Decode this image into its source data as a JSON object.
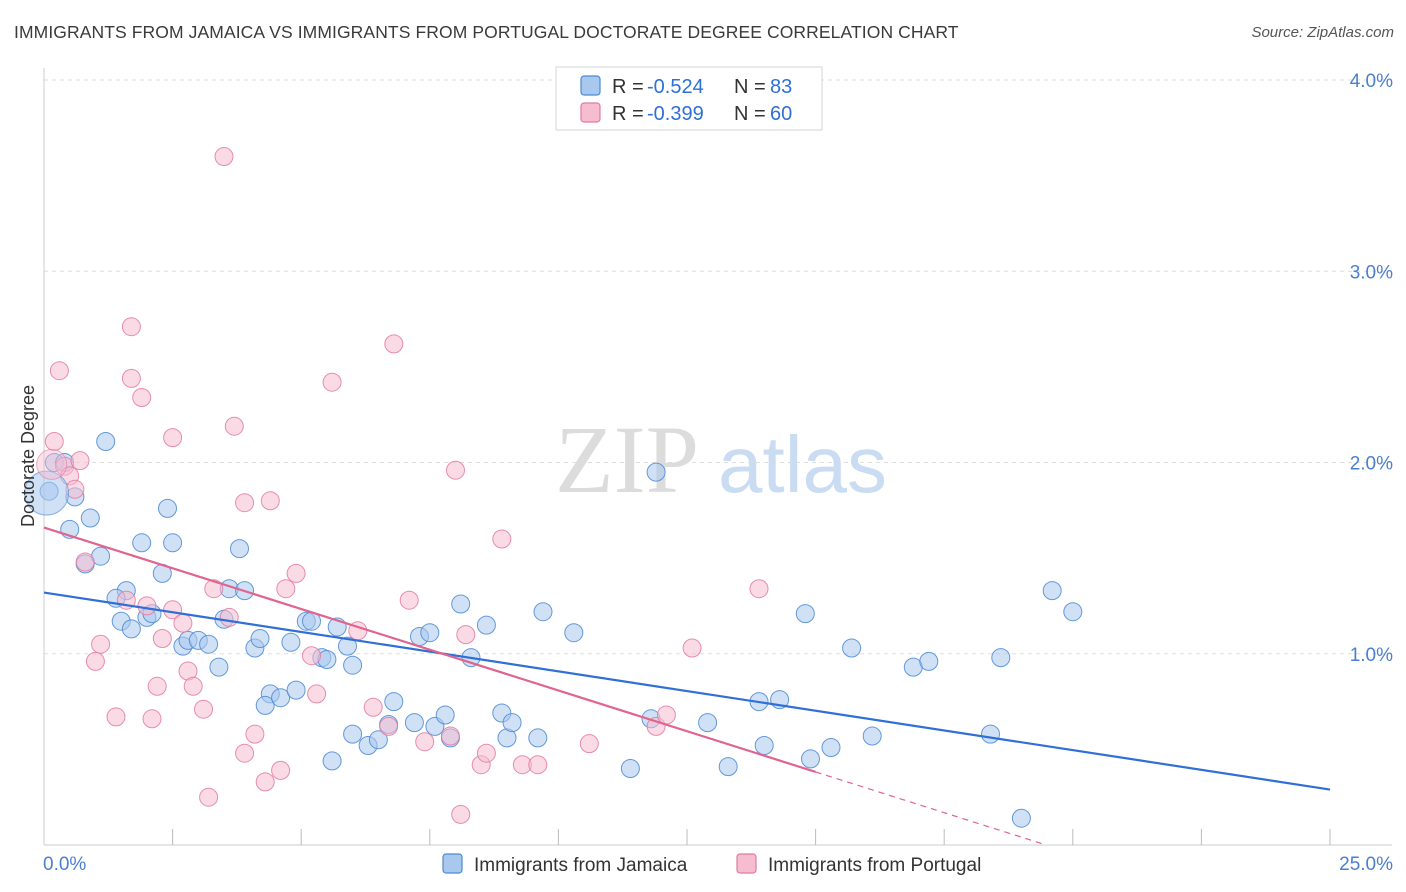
{
  "header": {
    "title": "IMMIGRANTS FROM JAMAICA VS IMMIGRANTS FROM PORTUGAL DOCTORATE DEGREE CORRELATION CHART",
    "source": "Source: ZipAtlas.com"
  },
  "chart_data": {
    "type": "scatter",
    "title": "IMMIGRANTS FROM JAMAICA VS IMMIGRANTS FROM PORTUGAL DOCTORATE DEGREE CORRELATION CHART",
    "xlabel": "",
    "ylabel": "Doctorate Degree",
    "xlim": [
      0,
      25
    ],
    "ylim": [
      0,
      4.0
    ],
    "x_tick_labels": [
      "0.0%",
      "25.0%"
    ],
    "y_ticks": [
      1.0,
      2.0,
      3.0,
      4.0
    ],
    "y_tick_labels": [
      "1.0%",
      "2.0%",
      "3.0%",
      "4.0%"
    ],
    "grid": true,
    "watermark": {
      "main": "ZIP",
      "sub": "atlas"
    },
    "legend": {
      "position": "top-center",
      "entries": [
        {
          "r_label": "R = ",
          "r_value": "-0.524",
          "n_label": "N = ",
          "n_value": "83"
        },
        {
          "r_label": "R = ",
          "r_value": "-0.399",
          "n_label": "N = ",
          "n_value": "60"
        }
      ]
    },
    "series": [
      {
        "name": "Immigrants from Jamaica",
        "color": "#4a8ad4",
        "fill": "#a9c8ee",
        "trend": {
          "x0": 0,
          "y0": 1.32,
          "x1": 25,
          "y1": 0.29,
          "solid_until": 25
        },
        "points": [
          [
            0.2,
            2.0
          ],
          [
            0.1,
            1.85
          ],
          [
            0.6,
            1.82
          ],
          [
            0.9,
            1.71
          ],
          [
            0.5,
            1.65
          ],
          [
            1.2,
            2.11
          ],
          [
            0.8,
            1.47
          ],
          [
            1.1,
            1.51
          ],
          [
            1.9,
            1.58
          ],
          [
            2.4,
            1.76
          ],
          [
            2.5,
            1.58
          ],
          [
            3.8,
            1.55
          ],
          [
            2.3,
            1.42
          ],
          [
            1.6,
            1.33
          ],
          [
            1.4,
            1.29
          ],
          [
            1.5,
            1.17
          ],
          [
            2.0,
            1.19
          ],
          [
            2.1,
            1.21
          ],
          [
            1.7,
            1.13
          ],
          [
            2.7,
            1.04
          ],
          [
            2.8,
            1.07
          ],
          [
            3.0,
            1.07
          ],
          [
            3.2,
            1.05
          ],
          [
            3.4,
            0.93
          ],
          [
            3.6,
            1.34
          ],
          [
            3.5,
            1.18
          ],
          [
            3.9,
            1.33
          ],
          [
            4.1,
            1.03
          ],
          [
            4.2,
            1.08
          ],
          [
            4.8,
            1.06
          ],
          [
            5.1,
            1.17
          ],
          [
            5.2,
            1.17
          ],
          [
            5.4,
            0.98
          ],
          [
            5.5,
            0.97
          ],
          [
            5.9,
            1.04
          ],
          [
            6.0,
            0.94
          ],
          [
            5.7,
            1.14
          ],
          [
            4.4,
            0.79
          ],
          [
            4.3,
            0.73
          ],
          [
            4.6,
            0.77
          ],
          [
            4.9,
            0.81
          ],
          [
            6.0,
            0.58
          ],
          [
            6.3,
            0.52
          ],
          [
            6.5,
            0.55
          ],
          [
            5.6,
            0.44
          ],
          [
            6.7,
            0.63
          ],
          [
            6.8,
            0.75
          ],
          [
            7.2,
            0.64
          ],
          [
            7.3,
            1.09
          ],
          [
            7.5,
            1.11
          ],
          [
            7.6,
            0.62
          ],
          [
            7.8,
            0.68
          ],
          [
            7.9,
            0.56
          ],
          [
            8.1,
            1.26
          ],
          [
            8.3,
            0.98
          ],
          [
            8.6,
            1.15
          ],
          [
            8.9,
            0.69
          ],
          [
            9.0,
            0.56
          ],
          [
            9.1,
            0.64
          ],
          [
            9.7,
            1.22
          ],
          [
            9.6,
            0.56
          ],
          [
            10.3,
            1.11
          ],
          [
            11.4,
            0.4
          ],
          [
            11.8,
            0.66
          ],
          [
            11.9,
            1.95
          ],
          [
            12.9,
            0.64
          ],
          [
            13.3,
            0.41
          ],
          [
            13.9,
            0.75
          ],
          [
            14.0,
            0.52
          ],
          [
            14.3,
            0.76
          ],
          [
            14.8,
            1.21
          ],
          [
            14.9,
            0.45
          ],
          [
            15.3,
            0.51
          ],
          [
            15.7,
            1.03
          ],
          [
            16.1,
            0.57
          ],
          [
            16.9,
            0.93
          ],
          [
            17.2,
            0.96
          ],
          [
            18.6,
            0.98
          ],
          [
            18.4,
            0.58
          ],
          [
            19.0,
            0.14
          ],
          [
            19.6,
            1.33
          ],
          [
            20.0,
            1.22
          ],
          [
            0.4,
            2.0
          ]
        ]
      },
      {
        "name": "Immigrants from Portugal",
        "color": "#e37aa0",
        "fill": "#f6bdd0",
        "trend": {
          "x0": 0,
          "y0": 1.66,
          "x1": 25,
          "y1": -0.47,
          "solid_until": 15
        },
        "points": [
          [
            0.2,
            2.11
          ],
          [
            0.3,
            2.48
          ],
          [
            0.4,
            1.98
          ],
          [
            0.5,
            1.93
          ],
          [
            0.7,
            2.01
          ],
          [
            0.6,
            1.86
          ],
          [
            0.8,
            1.48
          ],
          [
            1.0,
            0.96
          ],
          [
            1.1,
            1.05
          ],
          [
            1.4,
            0.67
          ],
          [
            1.6,
            1.28
          ],
          [
            1.7,
            2.44
          ],
          [
            1.7,
            2.71
          ],
          [
            1.9,
            2.34
          ],
          [
            2.0,
            1.25
          ],
          [
            2.1,
            0.66
          ],
          [
            2.2,
            0.83
          ],
          [
            2.3,
            1.08
          ],
          [
            2.5,
            2.13
          ],
          [
            2.5,
            1.23
          ],
          [
            2.7,
            1.16
          ],
          [
            2.8,
            0.91
          ],
          [
            2.9,
            0.83
          ],
          [
            3.1,
            0.71
          ],
          [
            3.2,
            0.25
          ],
          [
            3.3,
            1.34
          ],
          [
            3.5,
            3.6
          ],
          [
            3.6,
            1.19
          ],
          [
            3.7,
            2.19
          ],
          [
            3.9,
            1.79
          ],
          [
            3.9,
            0.48
          ],
          [
            4.1,
            0.58
          ],
          [
            4.3,
            0.33
          ],
          [
            4.4,
            1.8
          ],
          [
            4.6,
            0.39
          ],
          [
            4.7,
            1.34
          ],
          [
            4.9,
            1.42
          ],
          [
            5.2,
            0.99
          ],
          [
            5.3,
            0.79
          ],
          [
            5.6,
            2.42
          ],
          [
            6.1,
            1.12
          ],
          [
            6.4,
            0.72
          ],
          [
            6.7,
            0.62
          ],
          [
            6.8,
            2.62
          ],
          [
            7.1,
            1.28
          ],
          [
            7.4,
            0.54
          ],
          [
            7.9,
            0.57
          ],
          [
            8.2,
            1.1
          ],
          [
            8.0,
            1.96
          ],
          [
            8.1,
            0.16
          ],
          [
            8.5,
            0.42
          ],
          [
            8.6,
            0.48
          ],
          [
            8.9,
            1.6
          ],
          [
            9.3,
            0.42
          ],
          [
            9.6,
            0.42
          ],
          [
            10.6,
            0.53
          ],
          [
            11.9,
            0.62
          ],
          [
            12.1,
            0.68
          ],
          [
            12.6,
            1.03
          ],
          [
            13.9,
            1.34
          ]
        ]
      }
    ]
  },
  "bottom_legend": {
    "entries": [
      "Immigrants from Jamaica",
      "Immigrants from Portugal"
    ]
  }
}
